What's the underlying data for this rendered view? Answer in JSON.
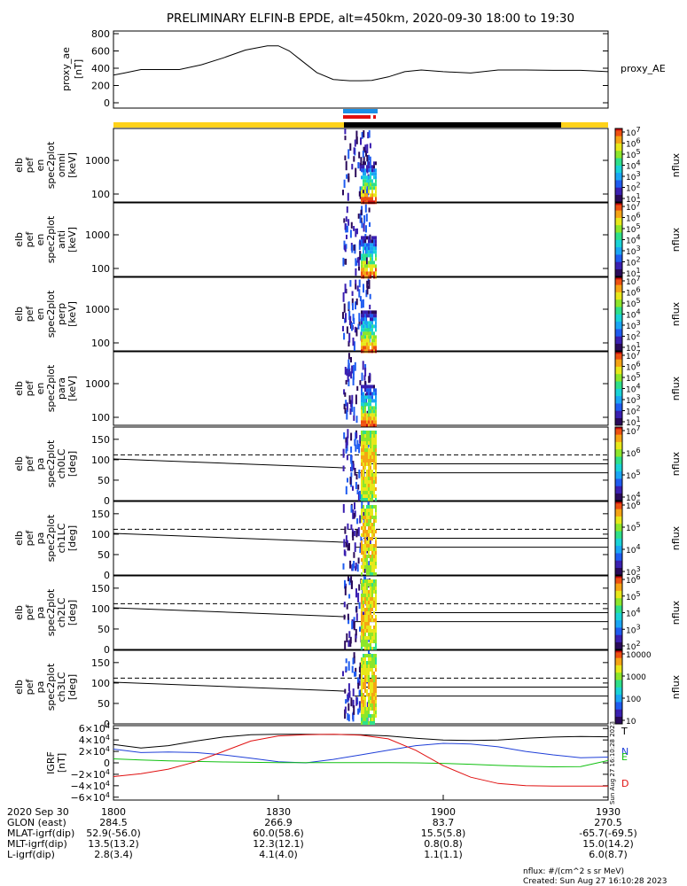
{
  "title": "PRELIMINARY ELFIN-B EPDE, alt=450km, 2020-09-30 18:00 to 19:30",
  "chart_data": [
    {
      "type": "line",
      "name": "proxy_ae",
      "ylabel_lines": [
        "proxy_ae",
        "[nT]"
      ],
      "legend": "proxy_AE",
      "yticks": [
        "800",
        "600",
        "400",
        "200",
        "0"
      ],
      "ylim": [
        0,
        900
      ],
      "x_minutes": [
        0,
        2,
        5,
        8,
        12,
        16,
        20,
        24,
        28,
        30,
        32,
        34,
        37,
        40,
        43,
        45,
        47,
        50,
        53,
        56,
        60,
        65,
        70,
        75,
        80,
        85,
        90
      ],
      "y": [
        320,
        345,
        385,
        385,
        385,
        440,
        520,
        610,
        660,
        660,
        600,
        500,
        350,
        270,
        255,
        255,
        260,
        300,
        360,
        380,
        360,
        345,
        380,
        380,
        375,
        375,
        360
      ]
    },
    {
      "type": "heatmap",
      "name": "omni",
      "ylabel_lines": [
        "elb",
        "pef",
        "en",
        "spec2plot",
        "omni",
        "[keV]"
      ],
      "yticks": [
        "1000",
        "100"
      ],
      "colorbar_ticks": [
        "10^7",
        "10^6",
        "10^5",
        "10^4",
        "10^3",
        "10^2",
        "10^1"
      ],
      "colorbar_label": "nflux"
    },
    {
      "type": "heatmap",
      "name": "anti",
      "ylabel_lines": [
        "elb",
        "pef",
        "en",
        "spec2plot",
        "anti",
        "[keV]"
      ],
      "yticks": [
        "1000",
        "100"
      ],
      "colorbar_ticks": [
        "10^7",
        "10^6",
        "10^5",
        "10^4",
        "10^3",
        "10^2",
        "10^1"
      ],
      "colorbar_label": "nflux"
    },
    {
      "type": "heatmap",
      "name": "perp",
      "ylabel_lines": [
        "elb",
        "pef",
        "en",
        "spec2plot",
        "perp",
        "[keV]"
      ],
      "yticks": [
        "1000",
        "100"
      ],
      "colorbar_ticks": [
        "10^7",
        "10^6",
        "10^5",
        "10^4",
        "10^3",
        "10^2",
        "10^1"
      ],
      "colorbar_label": "nflux"
    },
    {
      "type": "heatmap",
      "name": "para",
      "ylabel_lines": [
        "elb",
        "pef",
        "en",
        "spec2plot",
        "para",
        "[keV]"
      ],
      "yticks": [
        "1000",
        "100"
      ],
      "colorbar_ticks": [
        "10^7",
        "10^6",
        "10^5",
        "10^4",
        "10^3",
        "10^2",
        "10^1"
      ],
      "colorbar_label": "nflux"
    },
    {
      "type": "heatmap",
      "name": "ch0LC",
      "ylabel_lines": [
        "elb",
        "pef",
        "pa",
        "spec2plot",
        "ch0LC",
        "[deg]"
      ],
      "yticks": [
        "150",
        "100",
        "50",
        "0"
      ],
      "ylim": [
        0,
        180
      ],
      "colorbar_ticks": [
        "10^7",
        "10^6",
        "10^5",
        "10^4"
      ],
      "colorbar_label": "nflux"
    },
    {
      "type": "heatmap",
      "name": "ch1LC",
      "ylabel_lines": [
        "elb",
        "pef",
        "pa",
        "spec2plot",
        "ch1LC",
        "[deg]"
      ],
      "yticks": [
        "150",
        "100",
        "50",
        "0"
      ],
      "ylim": [
        0,
        180
      ],
      "colorbar_ticks": [
        "10^6",
        "10^5",
        "10^4",
        "10^3"
      ],
      "colorbar_label": "nflux"
    },
    {
      "type": "heatmap",
      "name": "ch2LC",
      "ylabel_lines": [
        "elb",
        "pef",
        "pa",
        "spec2plot",
        "ch2LC",
        "[deg]"
      ],
      "yticks": [
        "150",
        "100",
        "50",
        "0"
      ],
      "ylim": [
        0,
        180
      ],
      "colorbar_ticks": [
        "10^6",
        "10^5",
        "10^4",
        "10^3",
        "10^2"
      ],
      "colorbar_label": "nflux"
    },
    {
      "type": "heatmap",
      "name": "ch3LC",
      "ylabel_lines": [
        "elb",
        "pef",
        "pa",
        "spec2plot",
        "ch3LC",
        "[deg]"
      ],
      "yticks": [
        "150",
        "100",
        "50",
        "0"
      ],
      "ylim": [
        0,
        180
      ],
      "colorbar_ticks": [
        "10000",
        "1000",
        "100",
        "10"
      ],
      "colorbar_label": "nflux"
    },
    {
      "type": "line",
      "name": "IGRF",
      "ylabel_lines": [
        "IGRF",
        "[nT]"
      ],
      "yticks": [
        "6×10^4",
        "4×10^4",
        "2×10^4",
        "0",
        "−2×10^4",
        "−4×10^4",
        "−6×10^4"
      ],
      "ylim": [
        -65000,
        65000
      ],
      "x_minutes": [
        0,
        5,
        10,
        15,
        20,
        25,
        30,
        35,
        40,
        45,
        50,
        55,
        60,
        65,
        70,
        75,
        80,
        85,
        90
      ],
      "series": [
        {
          "name": "T",
          "color": "#000000",
          "values": [
            32000,
            26000,
            30000,
            38000,
            45000,
            49000,
            50000,
            50000,
            49500,
            49000,
            47000,
            43000,
            40000,
            39000,
            40000,
            43000,
            45000,
            46000,
            45500
          ]
        },
        {
          "name": "N",
          "color": "#1f3fd8",
          "values": [
            24000,
            18000,
            19000,
            18000,
            14000,
            8000,
            2000,
            0,
            6000,
            14000,
            22000,
            30000,
            34000,
            33000,
            28000,
            20000,
            14000,
            9000,
            10000
          ]
        },
        {
          "name": "E",
          "color": "#10c010",
          "values": [
            7000,
            5000,
            3500,
            2500,
            1500,
            1000,
            500,
            500,
            500,
            500,
            500,
            0,
            -1000,
            -2500,
            -4500,
            -6000,
            -7000,
            -6500,
            4000
          ]
        },
        {
          "name": "D",
          "color": "#e01010",
          "values": [
            -24000,
            -19000,
            -11000,
            2000,
            20000,
            38000,
            47000,
            49000,
            50000,
            48500,
            42000,
            22000,
            -5000,
            -25000,
            -36000,
            -40000,
            -40500,
            -40500,
            -40500
          ]
        }
      ]
    }
  ],
  "bottom_axis": {
    "rows": [
      {
        "label": "2020 Sep 30",
        "values": [
          "1800",
          "1830",
          "1900",
          "1930"
        ]
      },
      {
        "label": "GLON (east)",
        "values": [
          "284.5",
          "266.9",
          "83.7",
          "270.5"
        ]
      },
      {
        "label": "MLAT-igrf(dip)",
        "values": [
          "52.9(-56.0)",
          "60.0(58.6)",
          "15.5(5.8)",
          "-65.7(-69.5)"
        ]
      },
      {
        "label": "MLT-igrf(dip)",
        "values": [
          "13.5(13.2)",
          "12.3(12.1)",
          "0.8(0.8)",
          "15.0(14.2)"
        ]
      },
      {
        "label": "L-igrf(dip)",
        "values": [
          "2.8(3.4)",
          "4.1(4.0)",
          "1.1(1.1)",
          "6.0(8.7)"
        ]
      }
    ]
  },
  "footer": {
    "units": "nflux: #/(cm^2 s sr MeV)",
    "created": "Created: Sun Aug 27 16:10:28 2023",
    "stamp": "Sun Aug 27 16:10:28 2023"
  }
}
